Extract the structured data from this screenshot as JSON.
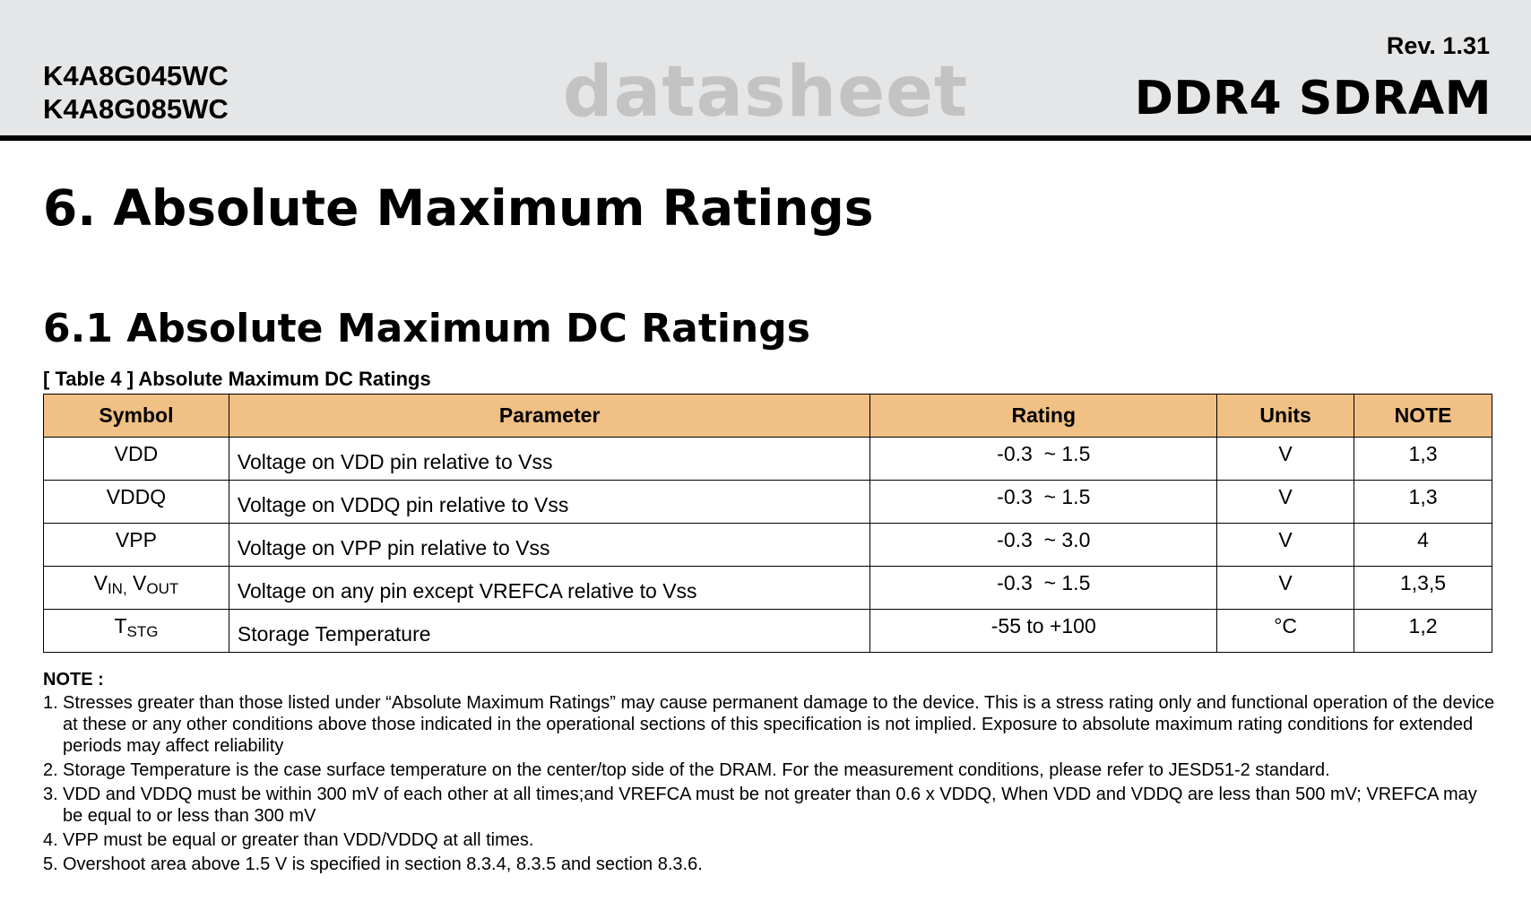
{
  "header": {
    "part_numbers": [
      "K4A8G045WC",
      "K4A8G085WC"
    ],
    "watermark": "datasheet",
    "revision": "Rev. 1.31",
    "product": "DDR4 SDRAM"
  },
  "section_title": "6. Absolute Maximum Ratings",
  "subsection_title": "6.1 Absolute Maximum DC Ratings",
  "table": {
    "caption": "[ Table 4 ] Absolute Maximum DC Ratings",
    "headers": [
      "Symbol",
      "Parameter",
      "Rating",
      "Units",
      "NOTE"
    ],
    "rows": [
      {
        "symbol": "VDD",
        "parameter": "Voltage on VDD pin relative to Vss",
        "rating": "-0.3  ~ 1.5",
        "units": "V",
        "note": "1,3"
      },
      {
        "symbol": "VDDQ",
        "parameter": "Voltage on VDDQ pin relative to Vss",
        "rating": "-0.3  ~ 1.5",
        "units": "V",
        "note": "1,3"
      },
      {
        "symbol": "VPP",
        "parameter": "Voltage on VPP pin relative to Vss",
        "rating": "-0.3  ~ 3.0",
        "units": "V",
        "note": "4"
      },
      {
        "symbol_a": "V",
        "symbol_a_sub": "IN,",
        "symbol_b": " V",
        "symbol_b_sub": "OUT",
        "parameter": "Voltage on any pin except VREFCA relative to Vss",
        "rating": "-0.3  ~ 1.5",
        "units": "V",
        "note": "1,3,5"
      },
      {
        "symbol_a": "T",
        "symbol_a_sub": "STG",
        "parameter": "Storage Temperature",
        "rating": "-55 to +100",
        "units": "°C",
        "note": "1,2"
      }
    ]
  },
  "notes": {
    "title": "NOTE :",
    "items": [
      {
        "num": "1.",
        "text": "Stresses greater than those listed under “Absolute Maximum Ratings” may cause permanent damage to the device. This is a stress rating only and functional operation of the device at these or any other conditions above those indicated in the operational sections of this specification is not implied. Exposure to absolute maximum rating conditions for extended periods may affect reliability"
      },
      {
        "num": "2.",
        "text": "Storage Temperature is the case surface temperature on the center/top side of the DRAM. For the measurement conditions, please refer to JESD51-2 standard."
      },
      {
        "num": "3.",
        "text": "VDD and VDDQ must be within 300 mV of each other at all times;and VREFCA must be not greater than 0.6 x VDDQ, When VDD and VDDQ are less than 500 mV; VREFCA may be equal to or less than 300 mV"
      },
      {
        "num": "4.",
        "text": "VPP must be equal or greater than VDD/VDDQ at all times."
      },
      {
        "num": "5.",
        "text": "Overshoot area above 1.5 V is specified in section 8.3.4, 8.3.5 and section 8.3.6."
      }
    ]
  }
}
